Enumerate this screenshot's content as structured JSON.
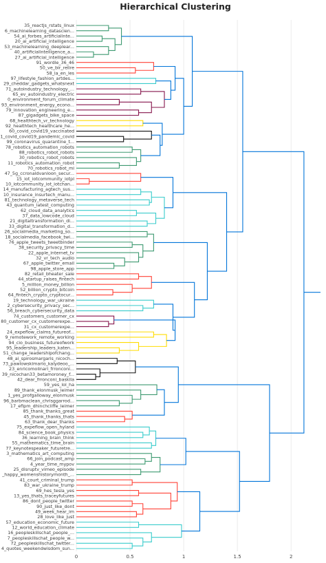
{
  "chart_data": {
    "type": "dendrogram",
    "title": "Hierarchical Clustering",
    "x_ticks": [
      0,
      0.5,
      1,
      1.5,
      2
    ],
    "xlim": [
      0,
      2.3
    ],
    "grid": true,
    "colors": {
      "teal_green": "#3d9970",
      "red": "#ff4136",
      "cyan": "#39cccc",
      "maroon": "#85144b",
      "yellow": "#ffdc00",
      "black": "#111111",
      "blue": "#0074d9"
    },
    "leaves": [
      "35_reactjs_rstats_linux",
      "6_machinelearning_datascien...",
      "54_ai_forbes_artificialinte...",
      "20_ai_artificial_intelligence",
      "53_machinelearning_deeplear...",
      "40_artificialintelligence_a...",
      "27_ai_artificial_intelligence",
      "91_wordle_36_46",
      "50_ve_bir_relire",
      "58_la_en_les",
      "97_lifestyle_fashion_artdes...",
      "29_cheddar_gadgets_whatsnext",
      "71_autoindustry_technology_...",
      "65_ev_autoindustry_electric",
      "0_environment_forum_climate",
      "93_environment_energy_econo...",
      "79_innovation_engineering_e...",
      "87_gigadgets_bike_space",
      "68_healthtech_vr_technology",
      "92_healthtech_healthcare_he...",
      "60_covid_covid19_vaccinated",
      "61_covid_covid19_pandemic_covid",
      "99_coronavirus_quarantine_t...",
      "78_robotics_automation_robots",
      "88_robotics_robot_robots",
      "30_robotics_robot_robots",
      "11_robotics_automation_robot",
      "70_robotics_robot_mi",
      "47_5g_ccronaldvanloon_secur...",
      "15_iot_iotcommunity_iotpl",
      "10_iotcommunity_iot_iotchan...",
      "14_manufacturing_agtech_sus...",
      "10_insurance_insurtech_manu...",
      "81_technology_metaverse_tech",
      "43_quantum_latest_computing",
      "62_cloud_data_analytics",
      "37_data_lowcode_cloud",
      "21_digitaltransformation_di...",
      "33_digital_transformation_d...",
      "26_socialmedia_marketing_so...",
      "18_socialmedia_facebook_twi...",
      "76_apple_tweets_tweetbinder",
      "38_security_privacy_time",
      "22_apple_internet_tv",
      "32_vr_tech_audio",
      "67_apple_twitter_email",
      "98_apple_store_app",
      "82_retail_bheater_sale",
      "44_startup_raises_fintech",
      "5_million_money_billion",
      "52_billion_crypto_bitcoin",
      "64_fintech_crypto_cryptocur...",
      "19_technology_war_ukraine",
      "2_cybersecurity_privacy_sec...",
      "56_breach_cybersecurity_data",
      "74_customers_customer_cx",
      "80_customer_cx_customerexpe...",
      "31_cx_customerexpe...",
      "24_expeflow_claims_futureof...",
      "9_remotework_remote_working",
      "94_cio_business_futureofwork",
      "95_leadership_leaders_katen...",
      "51_change_leadershipofchang...",
      "48_ai_spirosmargaris_nicoch...",
      "73_pawlowskimario_kalydeoo_...",
      "23_enricomolinari_frronconi...",
      "39_nicochan33_betamoroney_f...",
      "42_dear_frronconi_baskila",
      "59_yes_lol_ha",
      "89_thank_elonmusk_leimer",
      "1_yes_profgalloway_elonmusk",
      "96_barbmaclean_chrisggarrod...",
      "17_efipm_dhinchcliffe_leimer",
      "85_thank_thanks_great",
      "45_thank_thanks_thats",
      "63_thank_dear_thanks",
      "75_expeflow_open_hyland",
      "84_science_book_physics",
      "36_learning_brain_think",
      "55_mathematics_time_brain",
      "77_keynotespeaker_futuretre...",
      "3_mathematics_art_computing",
      "66_join_podcast_amp",
      "4_year_time_mypov",
      "25_disruptv_vimeo_episode",
      "_happy_womenshistorymonth_...",
      "41_court_criminal_trump",
      "83_war_ukraine_trump",
      "69_hes_tesla_yes",
      "13_yes_thats_traceyfutures",
      "86_dont_people_twitter",
      "90_just_like_dont",
      "49_week_hear_im",
      "28_love_like_just",
      "57_education_economic_future",
      "12_world_education_climate",
      "16_peopleskillschat_people_...",
      "7_peopleskillschat_people_w...",
      "72_peopleskillschat_twitter...",
      "4_quotes_weekendwisdom_sun..."
    ]
  }
}
